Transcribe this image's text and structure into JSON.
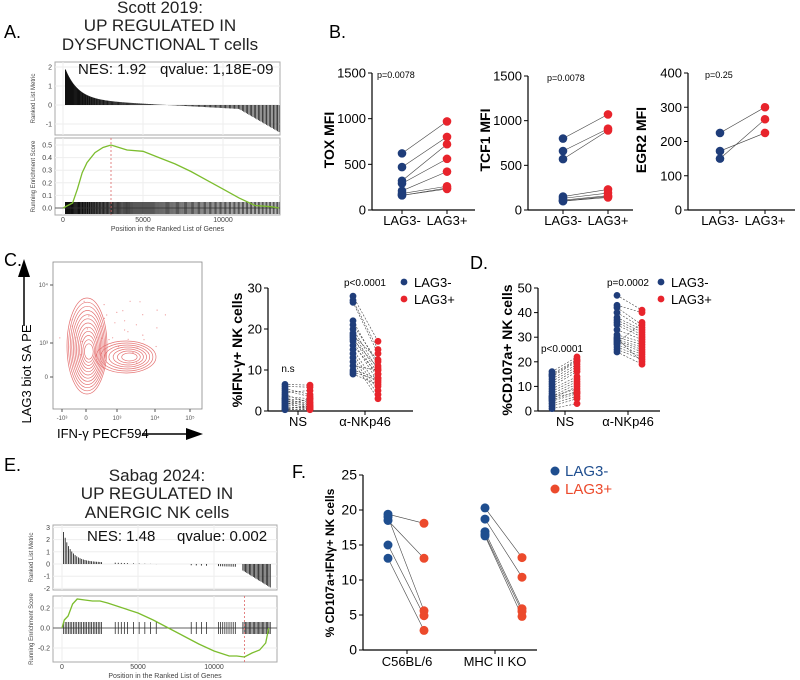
{
  "panel_labels": {
    "A": "A.",
    "B": "B.",
    "C": "C.",
    "D": "D.",
    "E": "E.",
    "F": "F."
  },
  "colors": {
    "lag3_neg": "#1f3d7a",
    "lag3_pos": "#e8242c",
    "lag3_neg_F": "#1f4e8f",
    "lag3_pos_F": "#ec4a2c",
    "enrichment_curve": "#7cbd2e",
    "contour": "#e57373"
  },
  "chart_data": [
    {
      "id": "A",
      "type": "line",
      "title_lines": [
        "Scott 2019:",
        "UP REGULATED IN",
        "DYSFUNCTIONAL T cells"
      ],
      "nes": "NES: 1.92",
      "qvalue": "qvalue: 1,18E-09",
      "top_ylabel": "Ranked List Metric",
      "top_yticks": [
        2,
        1,
        0,
        -1
      ],
      "bottom_ylabel": "Running Enrichment Score",
      "bottom_yticks": [
        0.5,
        0.4,
        0.3,
        0.2,
        0.1,
        0.0
      ],
      "bottom_ytick_labels": [
        "0.5",
        "0.4",
        "0.3",
        "0.2",
        "0.1",
        "0.0"
      ],
      "xlabel": "Position in the Ranked List of Genes",
      "xticks": [
        0,
        5000,
        10000
      ],
      "running_score": {
        "x": [
          0,
          300,
          600,
          900,
          1200,
          1500,
          2000,
          2500,
          3000,
          3500,
          4000,
          5000,
          6000,
          7000,
          8000,
          9000,
          10000,
          11000,
          12000,
          13000,
          13500
        ],
        "y": [
          0,
          0.02,
          0.04,
          0.15,
          0.28,
          0.36,
          0.44,
          0.48,
          0.5,
          0.48,
          0.46,
          0.45,
          0.4,
          0.35,
          0.29,
          0.22,
          0.15,
          0.08,
          0.02,
          0.01,
          0
        ]
      },
      "peak_position": 3000
    },
    {
      "id": "B1",
      "type": "scatter",
      "ylabel": "TOX MFI",
      "ylim": [
        0,
        1500
      ],
      "yticks": [
        0,
        500,
        1000,
        1500
      ],
      "x_tick_labels": [
        "LAG3-",
        "LAG3+"
      ],
      "groups": [
        {
          "annotation": "p=0.0078",
          "lag3_neg": [
            620,
            470,
            320,
            290,
            210,
            180,
            160,
            160
          ],
          "lag3_pos": [
            970,
            800,
            720,
            560,
            420,
            260,
            240,
            230
          ]
        }
      ]
    },
    {
      "id": "B2",
      "type": "scatter",
      "ylabel": "TCF1 MFI",
      "ylim": [
        0,
        1500
      ],
      "yticks": [
        0,
        500,
        1000,
        1500
      ],
      "x_tick_labels": [
        "LAG3-",
        "LAG3+"
      ],
      "groups": [
        {
          "annotation": "p=0.0078",
          "lag3_neg": [
            800,
            660,
            570,
            150,
            130,
            110,
            100,
            100
          ],
          "lag3_pos": [
            1070,
            910,
            890,
            230,
            190,
            160,
            150,
            140
          ]
        }
      ]
    },
    {
      "id": "B3",
      "type": "scatter",
      "ylabel": "EGR2 MFI",
      "ylim": [
        0,
        400
      ],
      "yticks": [
        0,
        100,
        200,
        300,
        400
      ],
      "x_tick_labels": [
        "LAG3-",
        "LAG3+"
      ],
      "groups": [
        {
          "annotation": "p=0.25",
          "lag3_neg": [
            225,
            172,
            150
          ],
          "lag3_pos": [
            300,
            225,
            265
          ]
        }
      ]
    },
    {
      "id": "C_flow",
      "type": "heatmap",
      "ylabel": "LAG3 biot SA PE",
      "xlabel": "IFN-γ PECF594",
      "y_tick_labels": [
        "10⁴",
        "10³",
        "0"
      ],
      "x_tick_labels": [
        "-10³",
        "0",
        "10³",
        "10⁴",
        "10⁵"
      ]
    },
    {
      "id": "C",
      "type": "scatter",
      "ylabel": "%IFN-γ+ NK cells",
      "ylim": [
        0,
        30
      ],
      "yticks": [
        0,
        10,
        20,
        30
      ],
      "x_tick_labels": [
        "NS",
        "α-NKp46"
      ],
      "legend": [
        "LAG3-",
        "LAG3+"
      ],
      "legend_position": "top-right",
      "groups": [
        {
          "annotation": "n.s",
          "lag3_neg": [
            6.5,
            6,
            5.5,
            5,
            4.5,
            4,
            3.5,
            3,
            3,
            2.5,
            2.5,
            2,
            2,
            1.5,
            1.5,
            1,
            1,
            0.5,
            0.5,
            0.3
          ],
          "lag3_pos": [
            6.3,
            5.8,
            4,
            3.5,
            5,
            2,
            3,
            1.5,
            2.5,
            1,
            2,
            1.5,
            0.5,
            1,
            3,
            0.8,
            0.5,
            1.2,
            0.3,
            0.5
          ]
        },
        {
          "annotation": "p<0.0001",
          "lag3_neg": [
            28,
            27,
            26.5,
            22,
            21,
            20,
            19,
            18,
            17.5,
            17,
            16,
            15,
            14,
            13,
            12,
            11,
            10,
            9.5,
            9,
            18.5
          ],
          "lag3_pos": [
            17,
            15,
            14,
            11,
            12,
            10,
            9,
            8,
            10.5,
            7,
            9,
            6,
            5,
            4,
            3,
            10,
            8,
            7.5,
            6.5,
            12.5
          ]
        }
      ]
    },
    {
      "id": "D",
      "type": "scatter",
      "ylabel": "%CD107a+ NK cells",
      "ylim": [
        0,
        50
      ],
      "yticks": [
        0,
        10,
        20,
        30,
        40,
        50
      ],
      "x_tick_labels": [
        "NS",
        "α-NKp46"
      ],
      "legend": [
        "LAG3-",
        "LAG3+"
      ],
      "legend_position": "top-right",
      "groups": [
        {
          "annotation": "p<0.0001",
          "lag3_neg": [
            16,
            15,
            14,
            13,
            12,
            11,
            10,
            9,
            8,
            7,
            6,
            5,
            4.5,
            4,
            3,
            2,
            1,
            6,
            5.5,
            14.5
          ],
          "lag3_pos": [
            22,
            21,
            20,
            19,
            18,
            17,
            16,
            14,
            13,
            12,
            11,
            10,
            8,
            7,
            6,
            5,
            3,
            9,
            7.5,
            20.5
          ]
        },
        {
          "annotation": "p=0.0002",
          "lag3_neg": [
            47,
            43,
            42,
            40,
            38,
            37,
            36,
            35,
            33,
            31,
            30,
            29,
            28,
            27,
            26,
            25,
            24,
            29.5,
            28.5,
            27.5
          ],
          "lag3_pos": [
            41,
            40,
            35,
            34,
            33,
            32,
            31,
            30,
            29,
            28,
            27,
            26,
            24,
            23,
            22,
            21,
            19,
            20,
            25,
            36
          ]
        }
      ]
    },
    {
      "id": "E",
      "type": "line",
      "title_lines": [
        "Sabag 2024:",
        "UP REGULATED IN",
        "ANERGIC NK cells"
      ],
      "nes": "NES: 1.48",
      "qvalue": "qvalue: 0.002",
      "top_ylabel": "Ranked List Metric",
      "top_yticks": [
        3,
        2,
        1,
        0,
        -1,
        -2
      ],
      "bottom_ylabel": "Running Enrichment Score",
      "bottom_yticks": [
        0.2,
        0.0,
        -0.2
      ],
      "bottom_ytick_labels": [
        "0.2",
        "0.0",
        "-0.2"
      ],
      "xlabel": "Position in the Ranked List of Genes",
      "xticks": [
        0,
        5000,
        10000
      ],
      "running_score": {
        "x": [
          0,
          150,
          400,
          700,
          1000,
          1500,
          2000,
          2500,
          3000,
          4000,
          5000,
          6000,
          7000,
          8000,
          9000,
          10000,
          11000,
          11500,
          12000,
          12500,
          13000,
          13400,
          13600
        ],
        "y": [
          0,
          0.08,
          0.12,
          0.24,
          0.29,
          0.28,
          0.27,
          0.27,
          0.25,
          0.2,
          0.15,
          0.08,
          0.0,
          -0.08,
          -0.16,
          -0.23,
          -0.28,
          -0.28,
          -0.29,
          -0.25,
          -0.22,
          -0.15,
          0
        ]
      },
      "peak_position": 12000
    },
    {
      "id": "F",
      "type": "scatter",
      "ylabel": "% CD107a+IFNγ+ NK cells",
      "ylim": [
        0,
        25
      ],
      "yticks": [
        0,
        5,
        10,
        15,
        20,
        25
      ],
      "x_tick_labels": [
        "C56BL/6",
        "MHC II KO"
      ],
      "legend": [
        "LAG3-",
        "LAG3+"
      ],
      "legend_position": "top-right",
      "groups": [
        {
          "lag3_neg": [
            19.4,
            18.5,
            19.0,
            15.0,
            13.1
          ],
          "lag3_pos": [
            18.1,
            13.1,
            5.6,
            4.9,
            2.8
          ]
        },
        {
          "lag3_neg": [
            20.3,
            18.7,
            16.9,
            16.5,
            16.3
          ],
          "lag3_pos": [
            13.2,
            10.4,
            5.9,
            5.5,
            4.8
          ]
        }
      ]
    }
  ]
}
